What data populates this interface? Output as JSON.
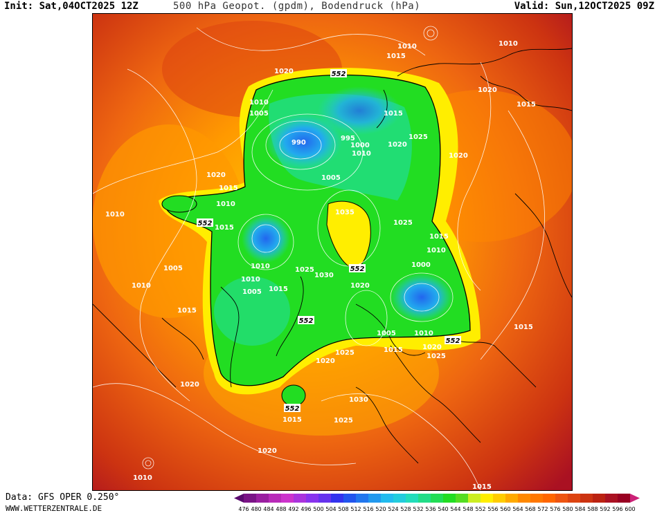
{
  "header": {
    "init": "Init: Sat,04OCT2025 12Z",
    "title": "500 hPa Geopot. (gpdm), Bodendruck (hPa)",
    "valid": "Valid: Sun,12OCT2025 09Z"
  },
  "footer": {
    "data_source": "Data: GFS OPER 0.250°",
    "credit": "WWW.WETTERZENTRALE.DE"
  },
  "colorbar": {
    "ticks": [
      "476",
      "480",
      "484",
      "488",
      "492",
      "496",
      "500",
      "504",
      "508",
      "512",
      "516",
      "520",
      "524",
      "528",
      "532",
      "536",
      "540",
      "544",
      "548",
      "552",
      "556",
      "560",
      "564",
      "568",
      "572",
      "576",
      "580",
      "584",
      "588",
      "592",
      "596",
      "600"
    ],
    "colors": [
      "#5a0a6e",
      "#7a1486",
      "#9a1ea0",
      "#b82ab8",
      "#cc33cc",
      "#aa33dd",
      "#8833ee",
      "#6633ee",
      "#3333ee",
      "#2255ee",
      "#2277ee",
      "#2299ee",
      "#22bbee",
      "#22ccdd",
      "#22ddbb",
      "#22dd88",
      "#22dd55",
      "#22dd22",
      "#55dd22",
      "#ccee22",
      "#ffee00",
      "#ffcc00",
      "#ffaa00",
      "#ff8800",
      "#ff7700",
      "#ff6600",
      "#ee5511",
      "#dd4411",
      "#cc3311",
      "#bb2211",
      "#aa1122",
      "#990022",
      "#cc2277"
    ]
  },
  "map": {
    "geopotential_label": "552",
    "geopotential_labels": [
      {
        "id": "g1",
        "text": "552"
      },
      {
        "id": "g2",
        "text": "552"
      },
      {
        "id": "g3",
        "text": "552"
      },
      {
        "id": "g4",
        "text": "552"
      },
      {
        "id": "g5",
        "text": "552"
      },
      {
        "id": "g6",
        "text": "552"
      }
    ],
    "isobar_labels": [
      {
        "id": "p01",
        "text": "1010"
      },
      {
        "id": "p02",
        "text": "1015"
      },
      {
        "id": "p03",
        "text": "1010"
      },
      {
        "id": "p04",
        "text": "1020"
      },
      {
        "id": "p05",
        "text": "1010"
      },
      {
        "id": "p06",
        "text": "1005"
      },
      {
        "id": "p07",
        "text": "1015"
      },
      {
        "id": "p08",
        "text": "1020"
      },
      {
        "id": "p09",
        "text": "1015"
      },
      {
        "id": "p10",
        "text": "990"
      },
      {
        "id": "p11",
        "text": "995"
      },
      {
        "id": "p12",
        "text": "1000"
      },
      {
        "id": "p13",
        "text": "1010"
      },
      {
        "id": "p14",
        "text": "1020"
      },
      {
        "id": "p15",
        "text": "1025"
      },
      {
        "id": "p16",
        "text": "1020"
      },
      {
        "id": "p17",
        "text": "1020"
      },
      {
        "id": "p18",
        "text": "1015"
      },
      {
        "id": "p19",
        "text": "1010"
      },
      {
        "id": "p20",
        "text": "1005"
      },
      {
        "id": "p21",
        "text": "1010"
      },
      {
        "id": "p22",
        "text": "1015"
      },
      {
        "id": "p23",
        "text": "1035"
      },
      {
        "id": "p24",
        "text": "1025"
      },
      {
        "id": "p25",
        "text": "1015"
      },
      {
        "id": "p26",
        "text": "1010"
      },
      {
        "id": "p27",
        "text": "1000"
      },
      {
        "id": "p28",
        "text": "1010"
      },
      {
        "id": "p29",
        "text": "1005"
      },
      {
        "id": "p30",
        "text": "1010"
      },
      {
        "id": "p31",
        "text": "1010"
      },
      {
        "id": "p32",
        "text": "1005"
      },
      {
        "id": "p33",
        "text": "1015"
      },
      {
        "id": "p34",
        "text": "1025"
      },
      {
        "id": "p35",
        "text": "1030"
      },
      {
        "id": "p36",
        "text": "1020"
      },
      {
        "id": "p37",
        "text": "1015"
      },
      {
        "id": "p38",
        "text": "1005"
      },
      {
        "id": "p39",
        "text": "1015"
      },
      {
        "id": "p40",
        "text": "1010"
      },
      {
        "id": "p41",
        "text": "1020"
      },
      {
        "id": "p42",
        "text": "1025"
      },
      {
        "id": "p43",
        "text": "1025"
      },
      {
        "id": "p44",
        "text": "1020"
      },
      {
        "id": "p45",
        "text": "1015"
      },
      {
        "id": "p46",
        "text": "1030"
      },
      {
        "id": "p47",
        "text": "1025"
      },
      {
        "id": "p48",
        "text": "1015"
      },
      {
        "id": "p49",
        "text": "1020"
      },
      {
        "id": "p50",
        "text": "1020"
      },
      {
        "id": "p51",
        "text": "1010"
      },
      {
        "id": "p52",
        "text": "1015"
      }
    ]
  }
}
